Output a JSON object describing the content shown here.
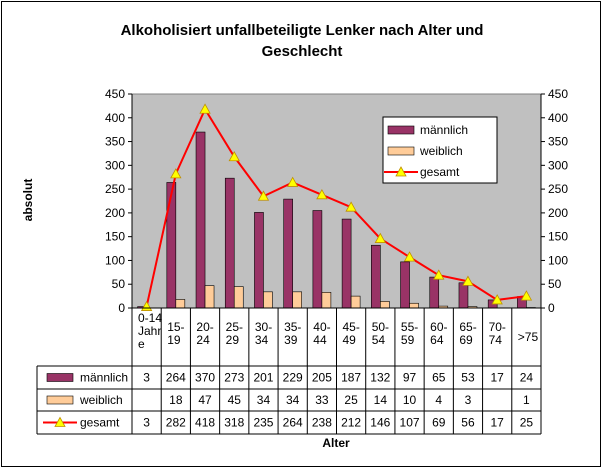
{
  "chart_data": {
    "type": "bar",
    "title_lines": [
      "Alkoholisiert unfallbeteiligte Lenker nach Alter und",
      "Geschlecht"
    ],
    "xlabel": "Alter",
    "ylabel": "absolut",
    "ylim": [
      0,
      450
    ],
    "yticks": [
      0,
      50,
      100,
      150,
      200,
      250,
      300,
      350,
      400,
      450
    ],
    "grid": false,
    "legend_position": "top-right",
    "categories": [
      [
        "0-14",
        "Jahr",
        "e"
      ],
      [
        "15-",
        "19"
      ],
      [
        "20-",
        "24"
      ],
      [
        "25-",
        "29"
      ],
      [
        "30-",
        "34"
      ],
      [
        "35-",
        "39"
      ],
      [
        "40-",
        "44"
      ],
      [
        "45-",
        "49"
      ],
      [
        "50-",
        "54"
      ],
      [
        "55-",
        "59"
      ],
      [
        "60-",
        "64"
      ],
      [
        "65-",
        "69"
      ],
      [
        "70-",
        "74"
      ],
      [
        ">75"
      ]
    ],
    "series": [
      {
        "name": "männlich",
        "kind": "bar",
        "color": "#993366",
        "values": [
          3,
          264,
          370,
          273,
          201,
          229,
          205,
          187,
          132,
          97,
          65,
          53,
          17,
          24
        ]
      },
      {
        "name": "weiblich",
        "kind": "bar",
        "color": "#FFCC99",
        "values": [
          null,
          18,
          47,
          45,
          34,
          34,
          33,
          25,
          14,
          10,
          4,
          3,
          null,
          1
        ]
      },
      {
        "name": "gesamt",
        "kind": "line",
        "color": "#FF0000",
        "marker_color": "#FFFF00",
        "values": [
          3,
          282,
          418,
          318,
          235,
          264,
          238,
          212,
          146,
          107,
          69,
          56,
          17,
          25
        ]
      }
    ]
  },
  "colors": {
    "plot_background": "#C0C0C0",
    "bar_outline": "#000000"
  }
}
